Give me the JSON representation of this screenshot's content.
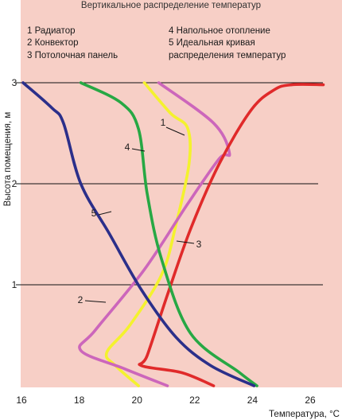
{
  "chart_data": {
    "type": "line",
    "title": "Вертикальное распределение температур",
    "xlabel": "Температура, °С",
    "ylabel": "Высота помещения, м",
    "xlim": [
      16,
      26.6
    ],
    "ylim": [
      0,
      3
    ],
    "x_ticks": [
      "16",
      "18",
      "20",
      "22",
      "24",
      "26"
    ],
    "y_ticks": [
      "1",
      "2",
      "3"
    ],
    "grid": "horizontal at 1, 2, 3",
    "background": "#f7cfc6",
    "legend": {
      "placement": "top",
      "left": [
        "1 Радиатор",
        "2 Конвектор",
        "3 Потолочная панель"
      ],
      "right": [
        "4 Напольное отопление",
        "5 Идеальная кривая",
        "распределения температур"
      ]
    },
    "series": [
      {
        "name": "1",
        "color": "#f4f22e",
        "points": [
          [
            20.2,
            3.0
          ],
          [
            21.1,
            2.7
          ],
          [
            21.7,
            2.55
          ],
          [
            21.75,
            2.2
          ],
          [
            21.3,
            1.6
          ],
          [
            20.8,
            1.1
          ],
          [
            19.7,
            0.6
          ],
          [
            18.9,
            0.33
          ],
          [
            19.2,
            0.2
          ],
          [
            20.0,
            0.0
          ]
        ]
      },
      {
        "name": "2",
        "color": "#cc66bb",
        "points": [
          [
            20.7,
            3.0
          ],
          [
            22.6,
            2.6
          ],
          [
            23.15,
            2.3
          ],
          [
            22.8,
            2.25
          ],
          [
            21.7,
            1.8
          ],
          [
            20.2,
            1.15
          ],
          [
            18.5,
            0.55
          ],
          [
            18.0,
            0.35
          ],
          [
            19.5,
            0.17
          ],
          [
            21.0,
            0.0
          ]
        ]
      },
      {
        "name": "3",
        "color": "#e02a2a",
        "points": [
          [
            26.4,
            2.98
          ],
          [
            25.3,
            2.98
          ],
          [
            24.7,
            2.93
          ],
          [
            23.9,
            2.73
          ],
          [
            22.8,
            2.2
          ],
          [
            21.8,
            1.55
          ],
          [
            21.0,
            0.9
          ],
          [
            20.3,
            0.3
          ],
          [
            20.1,
            0.2
          ],
          [
            21.5,
            0.13
          ],
          [
            22.6,
            0.0
          ]
        ]
      },
      {
        "name": "4",
        "color": "#27a844",
        "points": [
          [
            18.0,
            3.0
          ],
          [
            19.4,
            2.8
          ],
          [
            20.0,
            2.54
          ],
          [
            20.3,
            1.9
          ],
          [
            20.8,
            1.25
          ],
          [
            21.8,
            0.52
          ],
          [
            23.5,
            0.13
          ],
          [
            24.1,
            0.0
          ]
        ]
      },
      {
        "name": "5",
        "color": "#2b2f8a",
        "points": [
          [
            16.0,
            3.0
          ],
          [
            17.0,
            2.75
          ],
          [
            17.4,
            2.6
          ],
          [
            18.0,
            2.0
          ],
          [
            19.0,
            1.5
          ],
          [
            20.1,
            0.95
          ],
          [
            21.3,
            0.48
          ],
          [
            22.5,
            0.2
          ],
          [
            24.0,
            0.0
          ]
        ]
      }
    ]
  }
}
